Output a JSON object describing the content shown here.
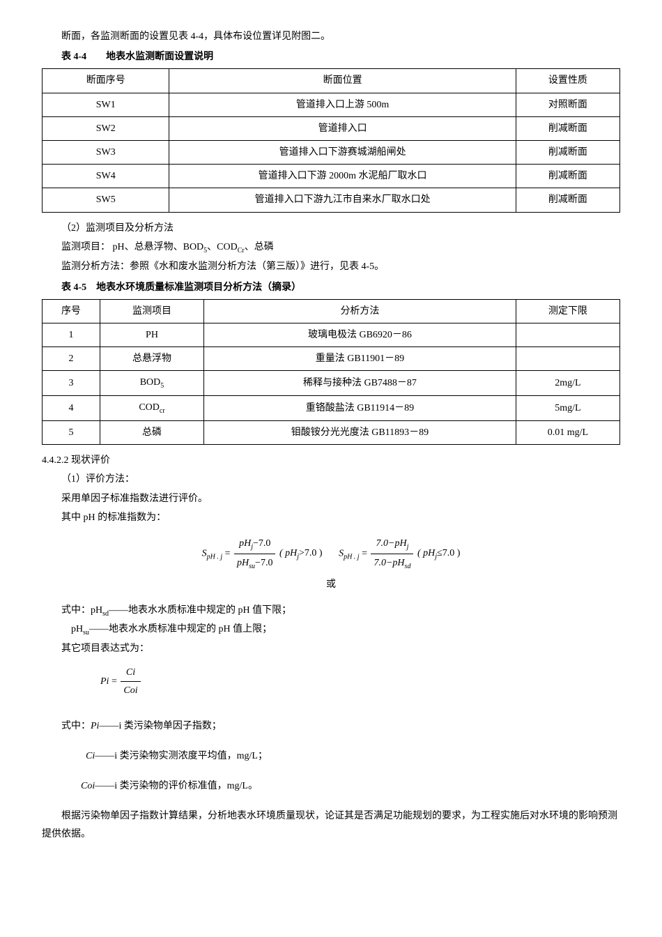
{
  "intro": "断面，各监测断面的设置见表 4-4，具体布设位置详见附图二。",
  "table1": {
    "caption": "表 4-4　　地表水监测断面设置说明",
    "headers": [
      "断面序号",
      "断面位置",
      "设置性质"
    ],
    "rows": [
      [
        "SW1",
        "管道排入口上游 500m",
        "对照断面"
      ],
      [
        "SW2",
        "管道排入口",
        "削减断面"
      ],
      [
        "SW3",
        "管道排入口下游赛城湖船闸处",
        "削减断面"
      ],
      [
        "SW4",
        "管道排入口下游 2000m 水泥船厂取水口",
        "削减断面"
      ],
      [
        "SW5",
        "管道排入口下游九江市自来水厂取水口处",
        "削减断面"
      ]
    ]
  },
  "section2": {
    "title": "（2）监测项目及分析方法",
    "line1_pre": "监测项目：  pH、总悬浮物、BOD",
    "line1_sub1": "5",
    "line1_mid": "、COD",
    "line1_sub2": "Cr",
    "line1_post": "、总磷",
    "line2": "监测分析方法：参照《水和废水监测分析方法（第三版）》进行，见表 4-5。"
  },
  "table2": {
    "caption": "表 4-5　地表水环境质量标准监测项目分析方法（摘录）",
    "headers": [
      "序号",
      "监测项目",
      "分析方法",
      "测定下限"
    ],
    "rows": [
      {
        "n": "1",
        "item": "PH",
        "method": "玻璃电极法 GB6920－86",
        "limit": ""
      },
      {
        "n": "2",
        "item": "总悬浮物",
        "method": "重量法 GB11901－89",
        "limit": ""
      },
      {
        "n": "3",
        "item_main": "BOD",
        "item_sub": "5",
        "method": "稀释与接种法 GB7488－87",
        "limit": "2mg/L"
      },
      {
        "n": "4",
        "item_main": "COD",
        "item_sub": "cr",
        "method": "重铬酸盐法 GB11914－89",
        "limit": "5mg/L"
      },
      {
        "n": "5",
        "item": "总磷",
        "method": "钼酸铵分光光度法 GB11893－89",
        "limit": "0.01 mg/L"
      }
    ]
  },
  "section442": {
    "heading": "4.4.2.2 现状评价",
    "sub1": "（1）评价方法：",
    "line1": "采用单因子标准指数法进行评价。",
    "line2": "其中 pH 的标准指数为："
  },
  "formula1": {
    "s_label": "S",
    "s_sub": "pH . j",
    "eq": "=",
    "num1_a": "pH",
    "num1_sub": "j",
    "num1_b": "−7.0",
    "den1_a": "pH",
    "den1_sub": "su",
    "den1_b": "−7.0",
    "cond1_a": "( pH",
    "cond1_sub": "j",
    "cond1_b": ">7.0 )",
    "num2_a": "7.0−pH",
    "num2_sub": "j",
    "den2_a": "7.0−pH",
    "den2_sub": "sd",
    "cond2_a": "( pH",
    "cond2_sub": "j",
    "cond2_b": "≤7.0 )",
    "or": "或"
  },
  "defs1": {
    "line1_pre": "式中：pH",
    "line1_sub": "sd",
    "line1_post": "——地表水水质标准中规定的 pH 值下限；",
    "line2_pre": "pH",
    "line2_sub": "su",
    "line2_post": "——地表水水质标准中规定的 pH 值上限；",
    "line3": "其它项目表达式为："
  },
  "formula2": {
    "pi": "Pi",
    "eq": "=",
    "num": "Ci",
    "den": "Coi"
  },
  "defs2": {
    "line1_pre": "式中：",
    "pi": "Pi",
    "line1_post": "——i 类污染物单因子指数；",
    "ci": "Ci",
    "line2_post": "——i 类污染物实测浓度平均值，mg/L；",
    "coi": "Coi",
    "line3_post": "——i 类污染物的评价标准值，mg/L。"
  },
  "conclusion": "根据污染物单因子指数计算结果，分析地表水环境质量现状，论证其是否满足功能规划的要求，为工程实施后对水环境的影响预测提供依据。"
}
